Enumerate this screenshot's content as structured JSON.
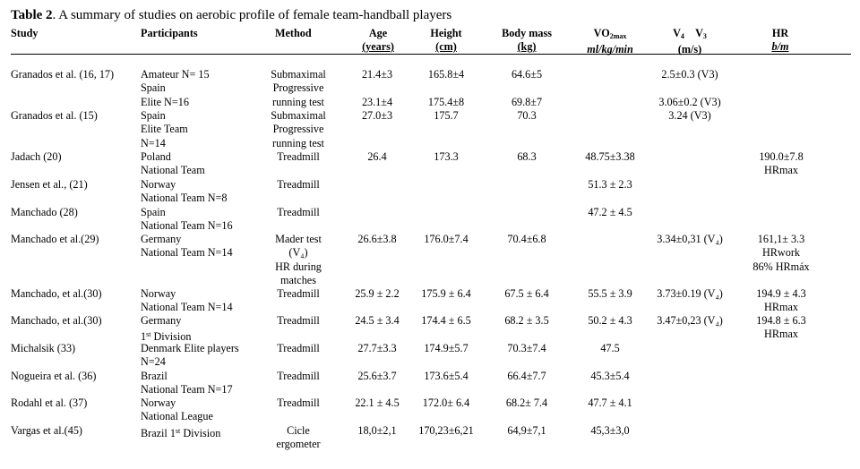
{
  "caption": {
    "label": "Table 2",
    "text": ". A summary of studies on aerobic profile of female team-handball players"
  },
  "headers": {
    "study": "Study",
    "participants": "Participants",
    "method": "Method",
    "age_1": "Age",
    "age_2": "(years)",
    "height_1": "Height",
    "height_2": "(cm)",
    "body_mass_1": "Body mass",
    "body_mass_2": "(kg)",
    "vo2_a": "VO",
    "vo2_sub": "2max",
    "vo2_units": "ml/kg/min",
    "v4": "V",
    "v4_sub": "4",
    "v3": "V",
    "v3_sub": "3",
    "v_units": "(m/s)",
    "hr": "HR",
    "hr_units": "b/m"
  },
  "rows": [
    {
      "study": "Granados et al. (16, 17)",
      "participants": [
        "Amateur N= 15",
        "Spain",
        "Elite  N=16"
      ],
      "method": [
        "Submaximal",
        "Progressive",
        "running test"
      ],
      "age": [
        "21.4±3",
        "",
        "23.1±4"
      ],
      "height": [
        "165.8±4",
        "",
        "175.4±8"
      ],
      "mass": [
        "64.6±5",
        "",
        "69.8±7"
      ],
      "vo2": [],
      "v": [
        "2.5±0.3  (V3)",
        "",
        "3.06±0.2 (V3)"
      ],
      "hr": []
    },
    {
      "study": "Granados et al. (15)",
      "participants": [
        "Spain",
        "Elite Team",
        "N=14"
      ],
      "method": [
        "Submaximal",
        "Progressive",
        "running test"
      ],
      "age": [
        "27.0±3"
      ],
      "height": [
        "175.7"
      ],
      "mass": [
        "70.3"
      ],
      "vo2": [],
      "v": [
        "3.24 (V3)"
      ],
      "hr": []
    },
    {
      "study": "Jadach (20)",
      "participants": [
        "Poland",
        "National Team"
      ],
      "method": [
        "Treadmill"
      ],
      "age": [
        "26.4"
      ],
      "height": [
        "173.3"
      ],
      "mass": [
        "68.3"
      ],
      "vo2": [
        "48.75±3.38"
      ],
      "v": [],
      "hr": [
        "190.0±7.8",
        "HRmax"
      ]
    },
    {
      "study": "Jensen et al., (21)",
      "participants": [
        "Norway",
        "National Team  N=8"
      ],
      "method": [
        "Treadmill"
      ],
      "age": [],
      "height": [],
      "mass": [],
      "vo2": [
        "51.3 ± 2.3"
      ],
      "v": [],
      "hr": []
    },
    {
      "study": "Manchado (28)",
      "participants": [
        "Spain",
        "National Team N=16"
      ],
      "method": [
        "Treadmill"
      ],
      "age": [],
      "height": [],
      "mass": [],
      "vo2": [
        "47.2 ± 4.5"
      ],
      "v": [],
      "hr": []
    },
    {
      "study": "Manchado et al.(29)",
      "participants": [
        "Germany",
        "National Team  N=14"
      ],
      "method": [
        "Mader test",
        "(V₄)",
        "HR during",
        "matches"
      ],
      "age": [
        "26.6±3.8"
      ],
      "height": [
        "176.0±7.4"
      ],
      "mass": [
        "70.4±6.8"
      ],
      "vo2": [],
      "v": [
        "3.34±0,31 (V₄)"
      ],
      "hr": [
        "161,1± 3.3",
        "HRwork",
        "86%  HRmáx"
      ]
    },
    {
      "study": "Manchado, et al.(30)",
      "participants": [
        "Norway",
        "National Team N=14"
      ],
      "method": [
        "Treadmill"
      ],
      "age": [
        "25.9 ± 2.2"
      ],
      "height": [
        "175.9 ± 6.4"
      ],
      "mass": [
        "67.5 ± 6.4"
      ],
      "vo2": [
        "55.5 ± 3.9"
      ],
      "v": [
        "3.73±0.19 (V₄)"
      ],
      "hr": [
        "194.9 ± 4.3",
        "HRmax"
      ]
    },
    {
      "study": "Manchado, et al.(30)",
      "participants": [
        "Germany",
        "1st Division"
      ],
      "method": [
        "Treadmill"
      ],
      "age": [
        "24.5 ± 3.4"
      ],
      "height": [
        "174.4 ± 6.5"
      ],
      "mass": [
        "68.2 ± 3.5"
      ],
      "vo2": [
        "50.2 ± 4.3"
      ],
      "v": [
        "3.47±0,23 (V₄)"
      ],
      "hr": [
        "194.8 ± 6.3",
        "HRmax"
      ]
    },
    {
      "study": "Michalsik (33)",
      "participants": [
        "Denmark Elite players",
        "N=24"
      ],
      "method": [
        "Treadmill"
      ],
      "age": [
        "27.7±3.3"
      ],
      "height": [
        "174.9±5.7"
      ],
      "mass": [
        "70.3±7.4"
      ],
      "vo2": [
        "47.5"
      ],
      "v": [],
      "hr": []
    },
    {
      "study": "Nogueira et al. (36)",
      "participants": [
        "Brazil",
        "National Team N=17"
      ],
      "method": [
        "Treadmill"
      ],
      "age": [
        "25.6±3.7"
      ],
      "height": [
        "173.6±5.4"
      ],
      "mass": [
        "66.4±7.7"
      ],
      "vo2": [
        "45.3±5.4"
      ],
      "v": [],
      "hr": []
    },
    {
      "study": "Rodahl et al. (37)",
      "participants": [
        "Norway",
        "National League"
      ],
      "method": [
        "Treadmill"
      ],
      "age": [
        "22.1 ± 4.5"
      ],
      "height": [
        "172.0± 6.4"
      ],
      "mass": [
        "68.2± 7.4"
      ],
      "vo2": [
        "47.7 ± 4.1"
      ],
      "v": [],
      "hr": []
    },
    {
      "study": "Vargas et al.(45)",
      "participants": [
        "Brazil 1st Division"
      ],
      "method": [
        "Cicle",
        "ergometer"
      ],
      "age": [
        "18,0±2,1"
      ],
      "height": [
        "170,23±6,21"
      ],
      "mass": [
        "64,9±7,1"
      ],
      "vo2": [
        "45,3±3,0"
      ],
      "v": [],
      "hr": []
    }
  ]
}
